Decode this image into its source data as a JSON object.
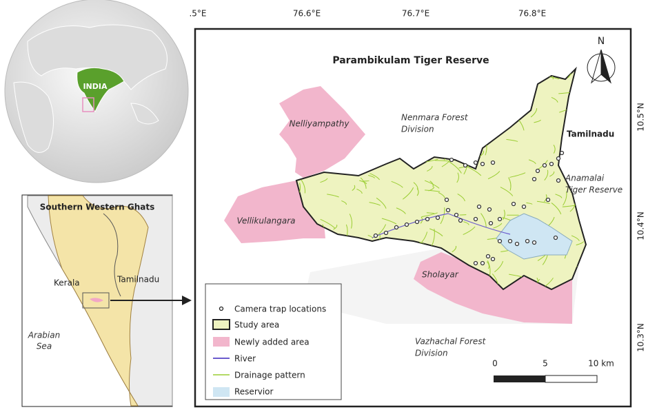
{
  "globe": {
    "label": "INDIA"
  },
  "inset": {
    "title": "Southern Western Ghats",
    "kerala": "Kerala",
    "tamilnadu": "Tamilnadu",
    "sea": [
      "Arabian",
      "Sea"
    ]
  },
  "map": {
    "title": "Parambikulam Tiger Reserve",
    "north": "N",
    "longitude_labels": [
      ".5°E",
      "76.6°E",
      "76.7°E",
      "76.8°E"
    ],
    "latitude_labels": [
      "10.5°N",
      "10.4°N",
      "10.3°N"
    ],
    "places": {
      "nelliyampathy": "Nelliyampathy",
      "nenmara": [
        "Nenmara Forest",
        "Division"
      ],
      "tamilnadu": "Tamilnadu",
      "anamalai": [
        "Anamalai",
        "Tiger Reserve"
      ],
      "vellikulangara": "Vellikulangara",
      "sholayar": "Sholayar",
      "vazhachal": [
        "Vazhachal Forest",
        "Division"
      ]
    },
    "legend": [
      "Camera trap locations",
      "Study area",
      "Newly added area",
      "River",
      "Drainage pattern",
      "Reservior"
    ],
    "scale": [
      "0",
      "5",
      "10 km"
    ]
  }
}
